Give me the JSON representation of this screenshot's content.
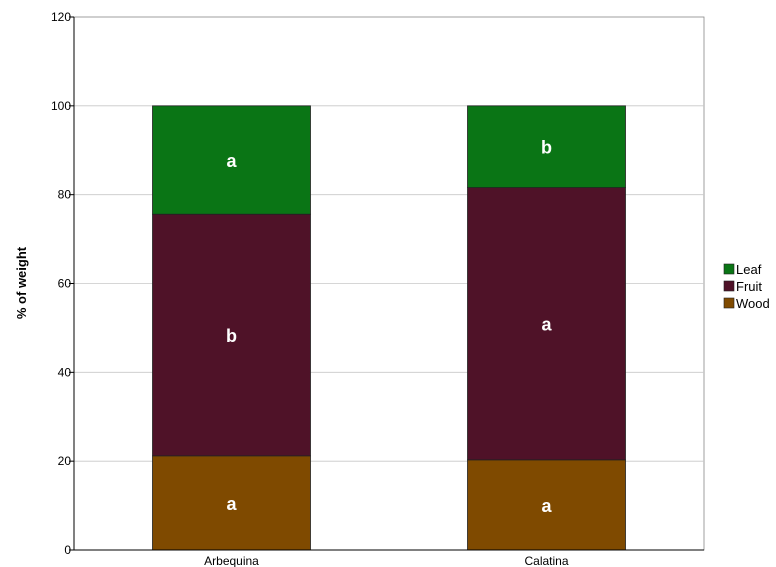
{
  "chart_data": {
    "type": "bar",
    "stacked": true,
    "title": "",
    "xlabel": "",
    "ylabel": "% of weight",
    "ylim": [
      0,
      120
    ],
    "yticks": [
      0,
      20,
      40,
      60,
      80,
      100,
      120
    ],
    "grid": true,
    "legend_position": "right",
    "categories": [
      "Arbequina",
      "Calatina"
    ],
    "series": [
      {
        "name": "Wood",
        "color": "#7f4a00",
        "values": [
          21.2,
          20.3
        ],
        "labels": [
          "a",
          "a"
        ]
      },
      {
        "name": "Fruit",
        "color": "#4f1228",
        "values": [
          54.4,
          61.3
        ],
        "labels": [
          "b",
          "a"
        ]
      },
      {
        "name": "Leaf",
        "color": "#0a7515",
        "values": [
          24.4,
          18.4
        ],
        "labels": [
          "a",
          "b"
        ]
      }
    ],
    "legend_order": [
      "Leaf",
      "Fruit",
      "Wood"
    ]
  }
}
